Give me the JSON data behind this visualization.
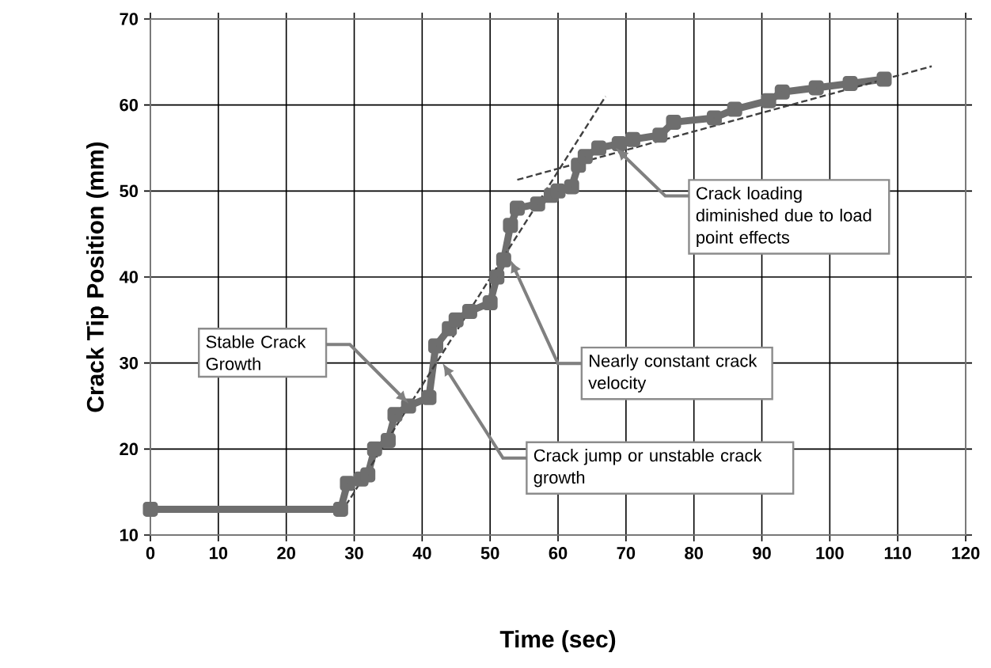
{
  "chart_data": {
    "type": "line",
    "xlabel": "Time (sec)",
    "ylabel": "Crack Tip Position (mm)",
    "xlim": [
      0,
      120
    ],
    "ylim": [
      10,
      70
    ],
    "xticks": [
      0,
      10,
      20,
      30,
      40,
      50,
      60,
      70,
      80,
      90,
      100,
      110,
      120
    ],
    "yticks": [
      10,
      20,
      30,
      40,
      50,
      60,
      70
    ],
    "grid": true,
    "series": [
      {
        "color": "#6e6e6e",
        "marker": "square",
        "line_style": "solid",
        "x": [
          0,
          28,
          29,
          31,
          32,
          33,
          35,
          36,
          38,
          41,
          42,
          44,
          45,
          47,
          50,
          51,
          52,
          53,
          54,
          57,
          59,
          60,
          62,
          63,
          64,
          66,
          69,
          71,
          75,
          77,
          83,
          86,
          91,
          93,
          98,
          103,
          108
        ],
        "values": [
          13,
          13,
          16,
          16.5,
          17,
          20,
          21,
          24,
          25,
          26,
          32,
          34,
          35,
          36,
          37,
          40,
          42,
          46,
          48,
          48.5,
          49.5,
          50,
          50.5,
          53,
          54,
          55,
          55.5,
          56,
          56.5,
          58,
          58.5,
          59.5,
          60.5,
          61.5,
          62,
          62.5,
          63
        ]
      },
      {
        "type": "line",
        "color": "#404040",
        "marker": "none",
        "line_style": "dashed",
        "x": [
          28,
          67
        ],
        "values": [
          12.5,
          61
        ]
      },
      {
        "type": "line",
        "color": "#404040",
        "marker": "none",
        "line_style": "dashed",
        "x": [
          54,
          115
        ],
        "values": [
          51.3,
          64.5
        ]
      }
    ],
    "annotations": [
      {
        "text": "Stable Crack Growth",
        "x": 38,
        "y": 25.3
      },
      {
        "text": "Crack jump or unstable crack growth",
        "x": 43,
        "y": 30
      },
      {
        "text": "Nearly constant crack velocity",
        "x": 53,
        "y": 42
      },
      {
        "text": "Crack loading diminished due to load point effects",
        "x": 68.5,
        "y": 55
      }
    ]
  }
}
